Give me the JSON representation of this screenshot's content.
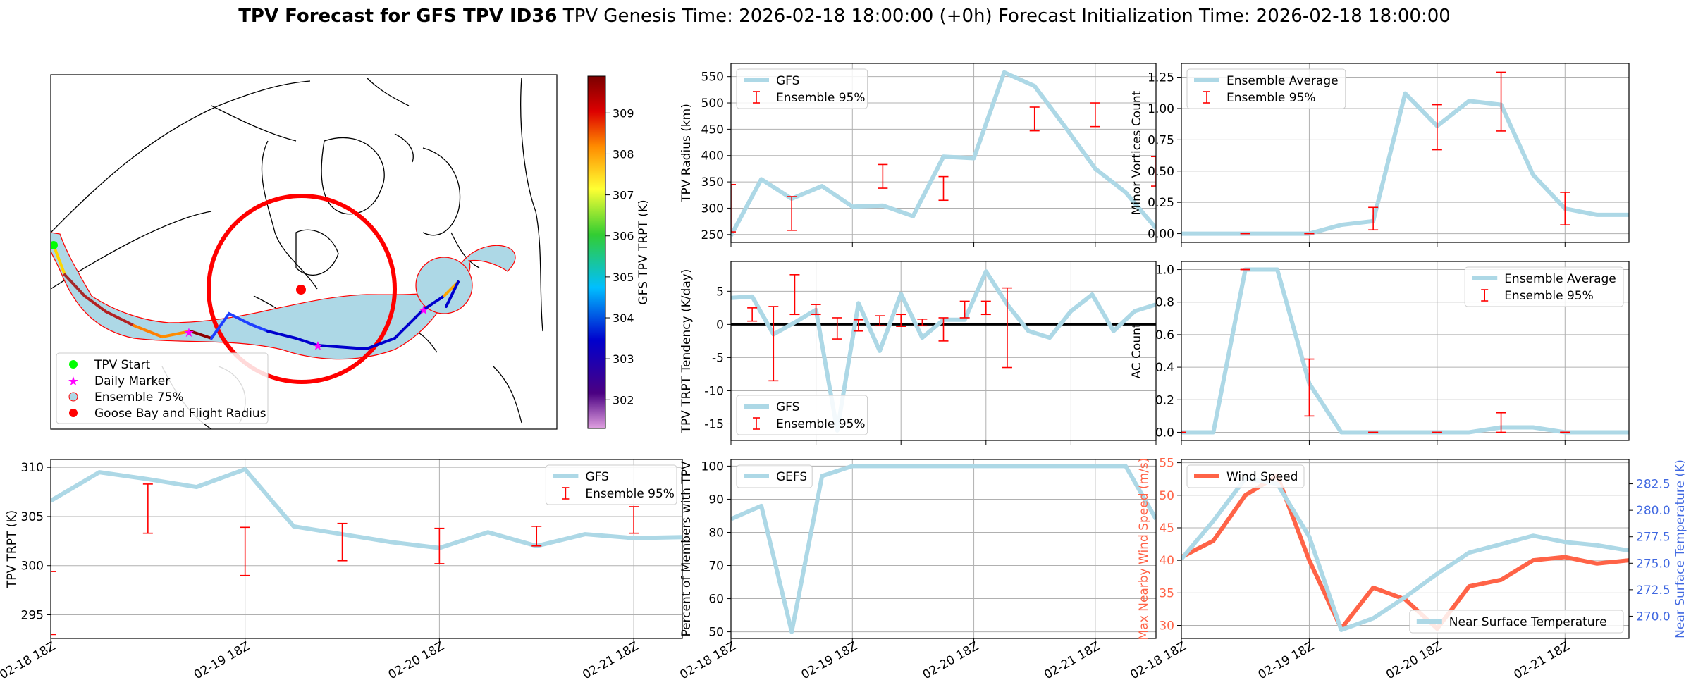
{
  "header": {
    "title_bold": "TPV Forecast for GFS TPV ID36",
    "genesis": "TPV Genesis Time: 2026-02-18 18:00:00 (+0h)",
    "init": "Forecast Initialization Time: 2026-02-18 18:00:00"
  },
  "colors": {
    "line": "#add8e6",
    "err": "#ff0000",
    "wind": "#ff6347",
    "temp_axis": "#4169e1",
    "land": "#000000"
  },
  "map": {
    "colorbar_label": "GFS TPV TRPT (K)",
    "colorbar_ticks": [
      "302",
      "303",
      "304",
      "305",
      "306",
      "307",
      "308",
      "309"
    ],
    "legend": [
      "TPV Start",
      "Daily Marker",
      "Ensemble 75%",
      "Goose Bay and Flight Radius"
    ]
  },
  "chart_data": [
    {
      "id": "radius",
      "type": "line",
      "ylabel": "TPV Radius (km)",
      "ylim": [
        235,
        575
      ],
      "yticks": [
        250,
        300,
        350,
        400,
        450,
        500,
        550
      ],
      "legend_position": "top-left",
      "series": [
        {
          "name": "GFS",
          "x": [
            0,
            1,
            2,
            3,
            4,
            5,
            6,
            7,
            8,
            9,
            10,
            11,
            12,
            13,
            14
          ],
          "values": [
            248,
            355,
            318,
            342,
            303,
            305,
            285,
            398,
            395,
            558,
            532,
            455,
            375,
            330,
            262
          ]
        }
      ],
      "errorbars": {
        "name": "Ensemble 95%",
        "bars": [
          [
            0,
            255,
            345
          ],
          [
            2,
            258,
            322
          ],
          [
            5,
            338,
            383
          ],
          [
            7,
            315,
            360
          ],
          [
            10,
            447,
            492
          ],
          [
            12,
            455,
            500
          ],
          [
            14,
            342,
            398
          ]
        ]
      }
    },
    {
      "id": "minor_vortices",
      "type": "line",
      "ylabel": "Minor Vortices Count",
      "ylim": [
        -0.07,
        1.36
      ],
      "yticks": [
        0,
        0.25,
        0.5,
        0.75,
        1.0,
        1.25
      ],
      "ytick_labels": [
        "0.00",
        "0.25",
        "0.50",
        "0.75",
        "1.00",
        "1.25"
      ],
      "legend_position": "top-left",
      "series": [
        {
          "name": "Ensemble Average",
          "x": [
            0,
            1,
            2,
            3,
            4,
            5,
            6,
            7,
            8,
            9,
            10,
            11,
            12,
            13,
            14
          ],
          "values": [
            0,
            0,
            0,
            0,
            0,
            0.07,
            0.1,
            1.12,
            0.86,
            1.06,
            1.03,
            0.47,
            0.2,
            0.15,
            0.15
          ]
        }
      ],
      "errorbars": {
        "name": "Ensemble 95%",
        "bars": [
          [
            2,
            0,
            0
          ],
          [
            4,
            0,
            0
          ],
          [
            6,
            0.03,
            0.21
          ],
          [
            8,
            0.67,
            1.03
          ],
          [
            10,
            0.82,
            1.29
          ],
          [
            12,
            0.07,
            0.33
          ]
        ]
      }
    },
    {
      "id": "tendency",
      "type": "line",
      "ylabel": "TPV TRPT Tendency (K/day)",
      "ylim": [
        -17.5,
        9.5
      ],
      "yticks": [
        -15,
        -10,
        -5,
        0,
        5
      ],
      "zero_line": true,
      "legend_position": "bottom-left",
      "series": [
        {
          "name": "GFS",
          "x": [
            0,
            1,
            2,
            3,
            4,
            5,
            6,
            7,
            8,
            9,
            10,
            11,
            12,
            13,
            14,
            15,
            16,
            17,
            18,
            19,
            20
          ],
          "values": [
            4.0,
            4.2,
            -1.5,
            0.3,
            2.2,
            -16.0,
            3.2,
            -4.0,
            4.6,
            -2.0,
            0.7,
            0.7,
            8.0,
            3.0,
            -1.0,
            -2.0,
            2.0,
            4.5,
            -1.0,
            2.0,
            3.0
          ]
        }
      ],
      "errorbars": {
        "name": "Ensemble 95%",
        "bars": [
          [
            1,
            0.5,
            2.5
          ],
          [
            2,
            -8.5,
            2.7
          ],
          [
            3,
            1.5,
            7.5
          ],
          [
            4,
            1.5,
            3.0
          ],
          [
            5,
            -2.2,
            1.0
          ],
          [
            6,
            -1.0,
            0.7
          ],
          [
            7,
            -0.2,
            1.3
          ],
          [
            8,
            -0.3,
            1.5
          ],
          [
            9,
            -0.2,
            0.8
          ],
          [
            10,
            -2.5,
            1.0
          ],
          [
            11,
            1.0,
            3.5
          ],
          [
            12,
            1.5,
            3.5
          ],
          [
            13,
            -6.5,
            5.5
          ]
        ]
      }
    },
    {
      "id": "ac_count",
      "type": "line",
      "ylabel": "AC Count",
      "ylim": [
        -0.05,
        1.05
      ],
      "yticks": [
        0,
        0.2,
        0.4,
        0.6,
        0.8,
        1.0
      ],
      "ytick_labels": [
        "0.0",
        "0.2",
        "0.4",
        "0.6",
        "0.8",
        "1.0"
      ],
      "legend_position": "top-right",
      "series": [
        {
          "name": "Ensemble Average",
          "x": [
            0,
            1,
            2,
            3,
            4,
            5,
            6,
            7,
            8,
            9,
            10,
            11,
            12,
            13,
            14
          ],
          "values": [
            0,
            0,
            1,
            1,
            0.3,
            0,
            0,
            0,
            0,
            0,
            0.03,
            0.03,
            0,
            0,
            0
          ]
        }
      ],
      "errorbars": {
        "name": "Ensemble 95%",
        "bars": [
          [
            0,
            0,
            0
          ],
          [
            2,
            1.0,
            1.0
          ],
          [
            4,
            0.1,
            0.45
          ],
          [
            6,
            0,
            0
          ],
          [
            8,
            0,
            0
          ],
          [
            10,
            0,
            0.12
          ],
          [
            12,
            0,
            0
          ]
        ]
      }
    },
    {
      "id": "trpt",
      "type": "line",
      "ylabel": "TPV TRPT (K)",
      "ylim": [
        292.6,
        310.8
      ],
      "yticks": [
        295,
        300,
        305,
        310
      ],
      "legend_position": "top-right",
      "series": [
        {
          "name": "GFS",
          "x": [
            0,
            1,
            2,
            3,
            4,
            5,
            6,
            7,
            8,
            9,
            10,
            11,
            12,
            13
          ],
          "values": [
            306.6,
            309.5,
            308.8,
            308.0,
            309.8,
            304.0,
            303.2,
            302.4,
            301.8,
            303.4,
            302.0,
            303.2,
            302.8,
            302.9
          ]
        }
      ],
      "errorbars": {
        "name": "Ensemble 95%",
        "bars": [
          [
            0,
            293.0,
            299.4
          ],
          [
            2,
            303.3,
            308.3
          ],
          [
            4,
            299.0,
            303.9
          ],
          [
            6,
            300.5,
            304.3
          ],
          [
            8,
            300.2,
            303.8
          ],
          [
            10,
            302.0,
            304.0
          ],
          [
            12,
            303.3,
            306.0
          ]
        ]
      }
    },
    {
      "id": "percent_members",
      "type": "line",
      "ylabel": "Percent of Members with TPV",
      "ylim": [
        48,
        102
      ],
      "yticks": [
        50,
        60,
        70,
        80,
        90,
        100
      ],
      "legend_position": "top-left",
      "series": [
        {
          "name": "GEFS",
          "x": [
            0,
            1,
            2,
            3,
            4,
            5,
            6,
            7,
            8,
            9,
            10,
            11,
            12,
            13,
            14
          ],
          "values": [
            84,
            88,
            50,
            97,
            100,
            100,
            100,
            100,
            100,
            100,
            100,
            100,
            100,
            100,
            84
          ]
        }
      ]
    },
    {
      "id": "wind_temp",
      "type": "line",
      "ylabel": "Max Nearby Wind Speed (m/s)",
      "ylim": [
        28,
        55.5
      ],
      "yticks": [
        30,
        35,
        40,
        45,
        50,
        55
      ],
      "ylabel_right": "Near Surface Temperature (K)",
      "ylim_right": [
        267.9,
        284.8
      ],
      "yticks_right": [
        270.0,
        272.5,
        275.0,
        277.5,
        280.0,
        282.5
      ],
      "ytick_labels_right": [
        "270.0",
        "272.5",
        "275.0",
        "277.5",
        "280.0",
        "282.5"
      ],
      "series": [
        {
          "name": "Wind Speed",
          "axis": "left",
          "x": [
            0,
            1,
            2,
            3,
            4,
            5,
            6,
            7,
            8,
            9,
            10,
            11,
            12,
            13,
            14
          ],
          "values": [
            40.5,
            43,
            50,
            53,
            40,
            29.5,
            35.8,
            34,
            29.5,
            36,
            37,
            40,
            40.5,
            39.5,
            40
          ]
        },
        {
          "name": "Near Surface Temperature",
          "axis": "right",
          "x": [
            0,
            1,
            2,
            3,
            4,
            5,
            6,
            7,
            8,
            9,
            10,
            11,
            12,
            13,
            14
          ],
          "values": [
            275.4,
            279.0,
            283.0,
            282.5,
            277.5,
            268.7,
            269.8,
            271.8,
            274.0,
            276.0,
            276.8,
            277.6,
            277.0,
            276.7,
            276.2
          ]
        }
      ]
    }
  ],
  "xticks": [
    "02-18 18Z",
    "02-19 18Z",
    "02-20 18Z",
    "02-21 18Z"
  ]
}
